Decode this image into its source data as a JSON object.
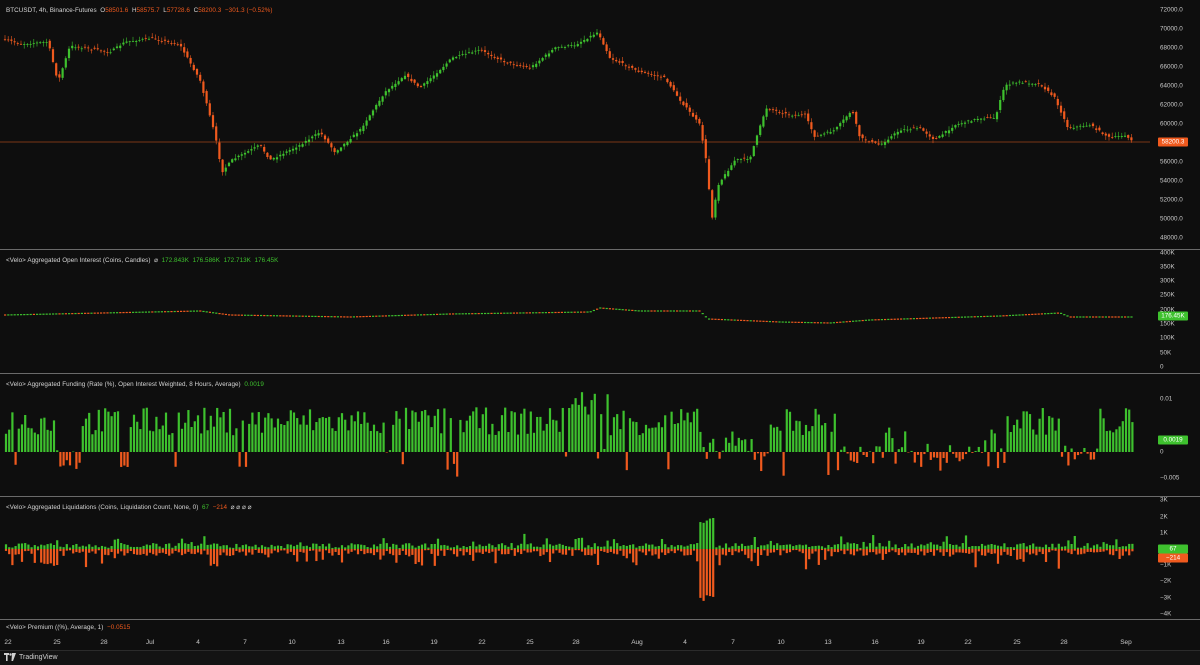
{
  "main": {
    "symbol": "BTCUSDT, 4h, Binance-Futures",
    "o_label": "O",
    "o": "58501.6",
    "h_label": "H",
    "h": "58575.7",
    "l_label": "L",
    "l": "57728.6",
    "c_label": "C",
    "c": "58200.3",
    "change": "−301.3 (−0.52%)",
    "price_tag": "58200.3",
    "ticks": [
      "72000.0",
      "70000.0",
      "68000.0",
      "66000.0",
      "64000.0",
      "62000.0",
      "60000.0",
      "58000.0",
      "56000.0",
      "54000.0",
      "52000.0",
      "50000.0",
      "48000.0"
    ]
  },
  "oi": {
    "title": "<Velo> Aggregated Open Interest (Coins, Candles)",
    "flag": "⌀",
    "v1": "172.843K",
    "v2": "176.586K",
    "v3": "172.713K",
    "v4": "176.45K",
    "tag": "176.45K",
    "ticks": [
      "400K",
      "350K",
      "300K",
      "250K",
      "200K",
      "150K",
      "100K",
      "50K",
      "0"
    ]
  },
  "funding": {
    "title": "<Velo> Aggregated Funding (Rate (%), Open Interest Weighted, 8 Hours, Average)",
    "value": "0.0019",
    "tag": "0.0019",
    "ticks": [
      "0.01",
      "0",
      "−0.005"
    ]
  },
  "liq": {
    "title": "<Velo> Aggregated Liquidations (Coins, Liquidation Count, None, 0)",
    "v_long": "67",
    "v_short": "−214",
    "extra": "⌀ ⌀ ⌀ ⌀",
    "tag_long": "67",
    "tag_short": "−214",
    "ticks": [
      "3K",
      "2K",
      "1K",
      "0",
      "−1K",
      "−2K",
      "−3K",
      "−4K"
    ]
  },
  "premium": {
    "title": "<Velo> Premium ((%), Average, 1)",
    "value": "−0.0515"
  },
  "xaxis": [
    "22",
    "25",
    "28",
    "Jul",
    "4",
    "7",
    "10",
    "13",
    "16",
    "19",
    "22",
    "25",
    "28",
    "Aug",
    "4",
    "7",
    "10",
    "13",
    "16",
    "19",
    "22",
    "25",
    "28",
    "Sep"
  ],
  "footer": {
    "brand": "TradingView"
  },
  "colors": {
    "up": "#3ec12e",
    "down": "#f05a1e",
    "bg": "#0e0e0e",
    "price_line": "#f05a1e"
  }
}
